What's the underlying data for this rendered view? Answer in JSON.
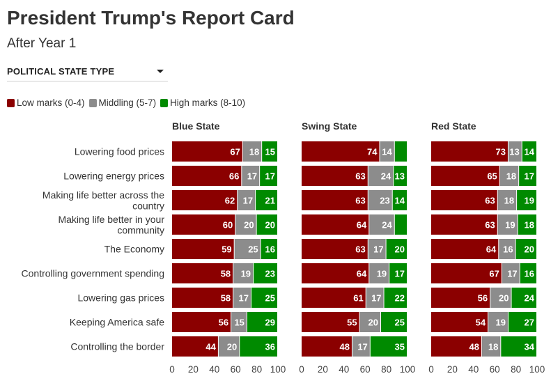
{
  "header": {
    "title": "President Trump's Report Card",
    "subtitle": "After Year 1"
  },
  "filter": {
    "label": "POLITICAL STATE TYPE"
  },
  "legend": {
    "items": [
      {
        "label": "Low marks (0-4)",
        "color": "#8b0000"
      },
      {
        "label": "Middling (5-7)",
        "color": "#8c8c8c"
      },
      {
        "label": "High marks (8-10)",
        "color": "#008a00"
      }
    ]
  },
  "chart_data": {
    "type": "bar",
    "orientation": "horizontal",
    "stacked": true,
    "categories": [
      "Lowering food prices",
      "Lowering energy prices",
      "Making life better across the country",
      "Making life better in your community",
      "The Economy",
      "Controlling government spending",
      "Lowering gas prices",
      "Keeping America safe",
      "Controlling the border"
    ],
    "category_lines": [
      [
        "Lowering food prices"
      ],
      [
        "Lowering energy prices"
      ],
      [
        "Making life better across the",
        "country"
      ],
      [
        "Making life better in your",
        "community"
      ],
      [
        "The Economy"
      ],
      [
        "Controlling government spending"
      ],
      [
        "Lowering gas prices"
      ],
      [
        "Keeping America safe"
      ],
      [
        "Controlling the border"
      ]
    ],
    "series_names": [
      "Low marks (0-4)",
      "Middling (5-7)",
      "High marks (8-10)"
    ],
    "colors": [
      "#8b0000",
      "#8c8c8c",
      "#008a00"
    ],
    "xlim": [
      0,
      100
    ],
    "xticks": [
      "0",
      "20",
      "40",
      "60",
      "80",
      "100"
    ],
    "panels": [
      {
        "title": "Blue State",
        "values": [
          [
            67,
            18,
            15
          ],
          [
            66,
            17,
            17
          ],
          [
            62,
            17,
            21
          ],
          [
            60,
            20,
            20
          ],
          [
            59,
            25,
            16
          ],
          [
            58,
            19,
            23
          ],
          [
            58,
            17,
            25
          ],
          [
            56,
            15,
            29
          ],
          [
            44,
            20,
            36
          ]
        ],
        "labels": [
          [
            "67",
            "18",
            "15"
          ],
          [
            "66",
            "17",
            "17"
          ],
          [
            "62",
            "17",
            "21"
          ],
          [
            "60",
            "20",
            "20"
          ],
          [
            "59",
            "25",
            "16"
          ],
          [
            "58",
            "19",
            "23"
          ],
          [
            "58",
            "17",
            "25"
          ],
          [
            "56",
            "15",
            "29"
          ],
          [
            "44",
            "20",
            "36"
          ]
        ]
      },
      {
        "title": "Swing State",
        "values": [
          [
            74,
            14,
            12
          ],
          [
            63,
            24,
            13
          ],
          [
            63,
            23,
            14
          ],
          [
            64,
            24,
            12
          ],
          [
            63,
            17,
            20
          ],
          [
            64,
            19,
            17
          ],
          [
            61,
            17,
            22
          ],
          [
            55,
            20,
            25
          ],
          [
            48,
            17,
            35
          ]
        ],
        "labels": [
          [
            "74",
            "14",
            ""
          ],
          [
            "63",
            "24",
            "13"
          ],
          [
            "63",
            "23",
            "14"
          ],
          [
            "64",
            "24",
            ""
          ],
          [
            "63",
            "17",
            "20"
          ],
          [
            "64",
            "19",
            "17"
          ],
          [
            "61",
            "17",
            "22"
          ],
          [
            "55",
            "20",
            "25"
          ],
          [
            "48",
            "17",
            "35"
          ]
        ]
      },
      {
        "title": "Red State",
        "values": [
          [
            73,
            13,
            14
          ],
          [
            65,
            18,
            17
          ],
          [
            63,
            18,
            19
          ],
          [
            63,
            19,
            18
          ],
          [
            64,
            16,
            20
          ],
          [
            67,
            17,
            16
          ],
          [
            56,
            20,
            24
          ],
          [
            54,
            19,
            27
          ],
          [
            48,
            18,
            34
          ]
        ],
        "labels": [
          [
            "73",
            "13",
            "14"
          ],
          [
            "65",
            "18",
            "17"
          ],
          [
            "63",
            "18",
            "19"
          ],
          [
            "63",
            "19",
            "18"
          ],
          [
            "64",
            "16",
            "20"
          ],
          [
            "67",
            "17",
            "16"
          ],
          [
            "56",
            "20",
            "24"
          ],
          [
            "54",
            "19",
            "27"
          ],
          [
            "48",
            "18",
            "34"
          ]
        ]
      }
    ]
  }
}
